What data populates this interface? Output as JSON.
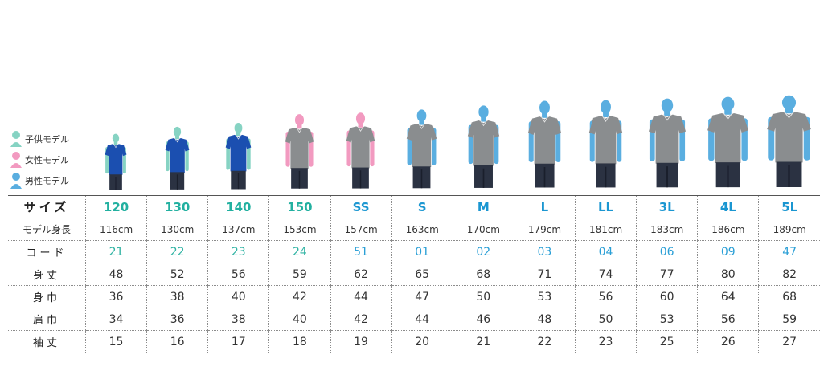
{
  "legend": {
    "items": [
      {
        "label": "子供モデル",
        "color": "#86d3c3"
      },
      {
        "label": "女性モデル",
        "color": "#f29ac0"
      },
      {
        "label": "男性モデル",
        "color": "#5aaee0"
      }
    ]
  },
  "colors": {
    "child": "#86d3c3",
    "female": "#f29ac0",
    "male": "#5aaee0",
    "shirt_blue": "#1b4fb0",
    "shirt_gray": "#8a8d8f",
    "pants": "#2b3242",
    "size_green": "#22b0a0",
    "size_blue": "#1a96d1"
  },
  "table": {
    "row_headers": {
      "size": "サイズ",
      "model_height": "モデル身長",
      "code": "コード",
      "body_length": "身丈",
      "body_width": "身巾",
      "shoulder_width": "肩巾",
      "sleeve_length": "袖丈"
    },
    "columns": [
      {
        "size": "120",
        "model_height": "116cm",
        "code": "21",
        "body_length": "48",
        "body_width": "36",
        "shoulder_width": "34",
        "sleeve_length": "15",
        "group": "child"
      },
      {
        "size": "130",
        "model_height": "130cm",
        "code": "22",
        "body_length": "52",
        "body_width": "38",
        "shoulder_width": "36",
        "sleeve_length": "16",
        "group": "child"
      },
      {
        "size": "140",
        "model_height": "137cm",
        "code": "23",
        "body_length": "56",
        "body_width": "40",
        "shoulder_width": "38",
        "sleeve_length": "17",
        "group": "child"
      },
      {
        "size": "150",
        "model_height": "153cm",
        "code": "24",
        "body_length": "59",
        "body_width": "42",
        "shoulder_width": "40",
        "sleeve_length": "18",
        "group": "female"
      },
      {
        "size": "SS",
        "model_height": "157cm",
        "code": "51",
        "body_length": "62",
        "body_width": "44",
        "shoulder_width": "42",
        "sleeve_length": "19",
        "group": "female"
      },
      {
        "size": "S",
        "model_height": "163cm",
        "code": "01",
        "body_length": "65",
        "body_width": "47",
        "shoulder_width": "44",
        "sleeve_length": "20",
        "group": "male"
      },
      {
        "size": "M",
        "model_height": "170cm",
        "code": "02",
        "body_length": "68",
        "body_width": "50",
        "shoulder_width": "46",
        "sleeve_length": "21",
        "group": "male"
      },
      {
        "size": "L",
        "model_height": "179cm",
        "code": "03",
        "body_length": "71",
        "body_width": "53",
        "shoulder_width": "48",
        "sleeve_length": "22",
        "group": "male"
      },
      {
        "size": "LL",
        "model_height": "181cm",
        "code": "04",
        "body_length": "74",
        "body_width": "56",
        "shoulder_width": "50",
        "sleeve_length": "23",
        "group": "male"
      },
      {
        "size": "3L",
        "model_height": "183cm",
        "code": "06",
        "body_length": "77",
        "body_width": "60",
        "shoulder_width": "53",
        "sleeve_length": "25",
        "group": "male"
      },
      {
        "size": "4L",
        "model_height": "186cm",
        "code": "09",
        "body_length": "80",
        "body_width": "64",
        "shoulder_width": "56",
        "sleeve_length": "26",
        "group": "male"
      },
      {
        "size": "5L",
        "model_height": "189cm",
        "code": "47",
        "body_length": "82",
        "body_width": "68",
        "shoulder_width": "59",
        "sleeve_length": "27",
        "group": "male"
      }
    ]
  }
}
